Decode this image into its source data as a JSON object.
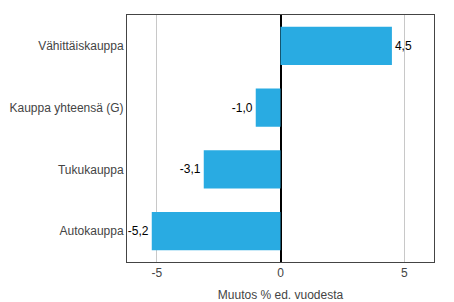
{
  "chart_data": {
    "type": "bar",
    "orientation": "horizontal",
    "categories": [
      "Autokauppa",
      "Tukukauppa",
      "Kauppa yhteensä (G)",
      "Vähittäiskauppa"
    ],
    "values": [
      -5.2,
      -3.1,
      -1.0,
      4.5
    ],
    "value_labels": [
      "-5,2",
      "-3,1",
      "-1,0",
      "4,5"
    ],
    "data_labels": true,
    "color": "#29abe2",
    "xlabel": "Muutos % ed. vuodesta",
    "xlim": [
      -6.2,
      6.2
    ],
    "xticks": [
      -5,
      0,
      5
    ],
    "grid": true
  }
}
